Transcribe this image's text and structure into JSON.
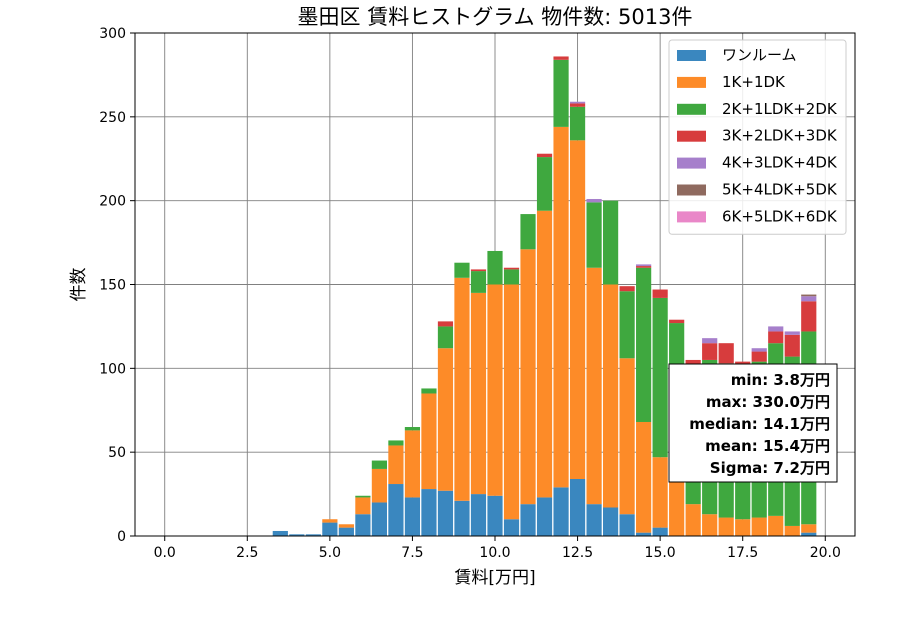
{
  "chart_data": {
    "type": "bar",
    "stacked": true,
    "title": "墨田区 賃料ヒストグラム 物件数: 5013件",
    "xlabel": "賃料[万円]",
    "ylabel": "件数",
    "xlim": [
      -0.9,
      20.9
    ],
    "ylim": [
      0,
      300
    ],
    "xticks": [
      0,
      2.5,
      5,
      7.5,
      10,
      12.5,
      15,
      17.5,
      20
    ],
    "xtick_labels": [
      "0.0",
      "2.5",
      "5.0",
      "7.5",
      "10.0",
      "12.5",
      "15.0",
      "17.5",
      "20.0"
    ],
    "yticks": [
      0,
      50,
      100,
      150,
      200,
      250,
      300
    ],
    "ytick_labels": [
      "0",
      "50",
      "100",
      "150",
      "200",
      "250",
      "300"
    ],
    "grid": true,
    "legend_position": "top-right",
    "bin_width": 0.5,
    "x": [
      3.5,
      4.0,
      4.5,
      5.0,
      5.5,
      6.0,
      6.5,
      7.0,
      7.5,
      8.0,
      8.5,
      9.0,
      9.5,
      10.0,
      10.5,
      11.0,
      11.5,
      12.0,
      12.5,
      13.0,
      13.5,
      14.0,
      14.5,
      15.0,
      15.5,
      16.0,
      16.5,
      17.0,
      17.5,
      18.0,
      18.5,
      19.0,
      19.5
    ],
    "series": [
      {
        "name": "ワンルーム",
        "color": "#3a87bf",
        "values": [
          3,
          1,
          1,
          8,
          5,
          13,
          20,
          31,
          23,
          28,
          27,
          21,
          25,
          24,
          10,
          19,
          23,
          29,
          34,
          19,
          17,
          13,
          2,
          5,
          0,
          0,
          0,
          0,
          0,
          0,
          0,
          0,
          2
        ]
      },
      {
        "name": "1K+1DK",
        "color": "#fd8b28",
        "values": [
          0,
          0,
          0,
          2,
          2,
          10,
          20,
          23,
          40,
          57,
          85,
          133,
          120,
          126,
          140,
          152,
          171,
          215,
          202,
          141,
          133,
          93,
          66,
          42,
          33,
          19,
          13,
          11,
          10,
          11,
          12,
          6,
          5
        ]
      },
      {
        "name": "2K+1LDK+2DK",
        "color": "#3fa83f",
        "values": [
          0,
          0,
          0,
          0,
          0,
          1,
          5,
          3,
          2,
          3,
          13,
          9,
          13,
          20,
          9,
          21,
          32,
          40,
          20,
          39,
          50,
          40,
          92,
          95,
          94,
          83,
          92,
          92,
          86,
          93,
          103,
          101,
          115
        ]
      },
      {
        "name": "3K+2LDK+3DK",
        "color": "#d73c3d",
        "values": [
          0,
          0,
          0,
          0,
          0,
          0,
          0,
          0,
          0,
          0,
          3,
          0,
          1,
          0,
          1,
          0,
          2,
          2,
          2,
          0,
          0,
          3,
          1,
          5,
          2,
          3,
          10,
          12,
          8,
          6,
          7,
          13,
          18
        ]
      },
      {
        "name": "4K+3LDK+4DK",
        "color": "#a67fcb",
        "values": [
          0,
          0,
          0,
          0,
          0,
          0,
          0,
          0,
          0,
          0,
          0,
          0,
          0,
          0,
          0,
          0,
          0,
          0,
          1,
          2,
          0,
          0,
          1,
          0,
          0,
          0,
          3,
          0,
          0,
          2,
          3,
          2,
          3
        ]
      },
      {
        "name": "5K+4LDK+5DK",
        "color": "#8f6a5f",
        "values": [
          0,
          0,
          0,
          0,
          0,
          0,
          0,
          0,
          0,
          0,
          0,
          0,
          0,
          0,
          0,
          0,
          0,
          0,
          0,
          0,
          0,
          0,
          0,
          0,
          0,
          0,
          0,
          0,
          0,
          0,
          0,
          0,
          1
        ]
      },
      {
        "name": "6K+5LDK+6DK",
        "color": "#e987c8",
        "values": [
          0,
          0,
          0,
          0,
          0,
          0,
          0,
          0,
          0,
          0,
          0,
          0,
          0,
          0,
          0,
          0,
          0,
          0,
          0,
          0,
          0,
          0,
          0,
          0,
          0,
          0,
          0,
          0,
          0,
          0,
          0,
          0,
          0
        ]
      }
    ],
    "annotations": {
      "stats_lines": [
        "min: 3.8万円",
        "max: 330.0万円",
        "median: 14.1万円",
        "mean: 15.4万円",
        "Sigma: 7.2万円"
      ],
      "position": "right-middle"
    }
  }
}
